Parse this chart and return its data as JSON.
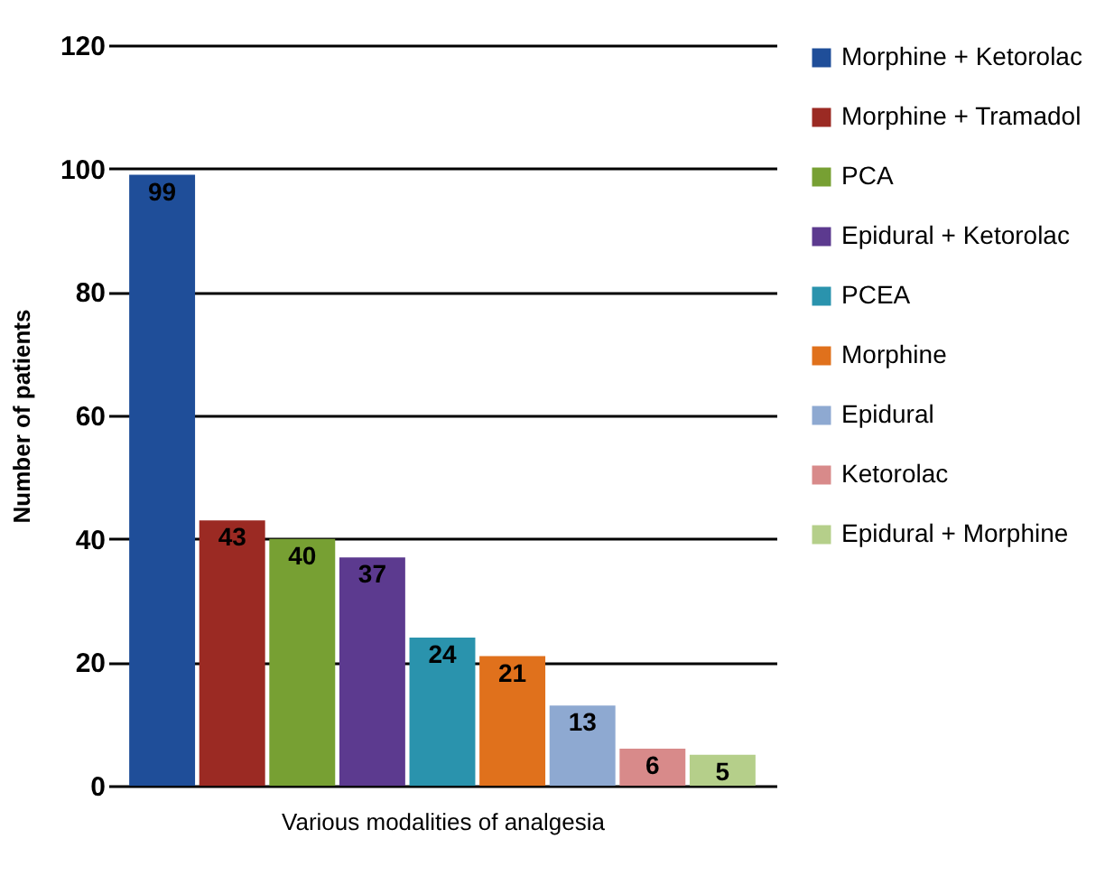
{
  "chart_data": {
    "type": "bar",
    "xlabel": "Various modalities of analgesia",
    "ylabel": "Number of patients",
    "categories": [
      null
    ],
    "series": [
      {
        "name": "Morphine + Ketorolac",
        "color": "#1f4e99",
        "values": [
          99
        ]
      },
      {
        "name": "Morphine + Tramadol",
        "color": "#9b2a23",
        "values": [
          43
        ]
      },
      {
        "name": "PCA",
        "color": "#77a033",
        "values": [
          40
        ]
      },
      {
        "name": "Epidural + Ketorolac",
        "color": "#5c3a8f",
        "values": [
          37
        ]
      },
      {
        "name": "PCEA",
        "color": "#2a93ad",
        "values": [
          24
        ]
      },
      {
        "name": "Morphine",
        "color": "#e0711c",
        "values": [
          21
        ]
      },
      {
        "name": "Epidural",
        "color": "#8ea9d1",
        "values": [
          13
        ]
      },
      {
        "name": "Ketorolac",
        "color": "#d88a8a",
        "values": [
          6
        ]
      },
      {
        "name": "Epidural + Morphine",
        "color": "#b5cf8a",
        "values": [
          5
        ]
      }
    ],
    "ylim": [
      0,
      120
    ],
    "yticks": [
      0,
      20,
      40,
      60,
      80,
      100,
      120
    ],
    "grid": "y",
    "legend": "right",
    "data_labels": true
  }
}
